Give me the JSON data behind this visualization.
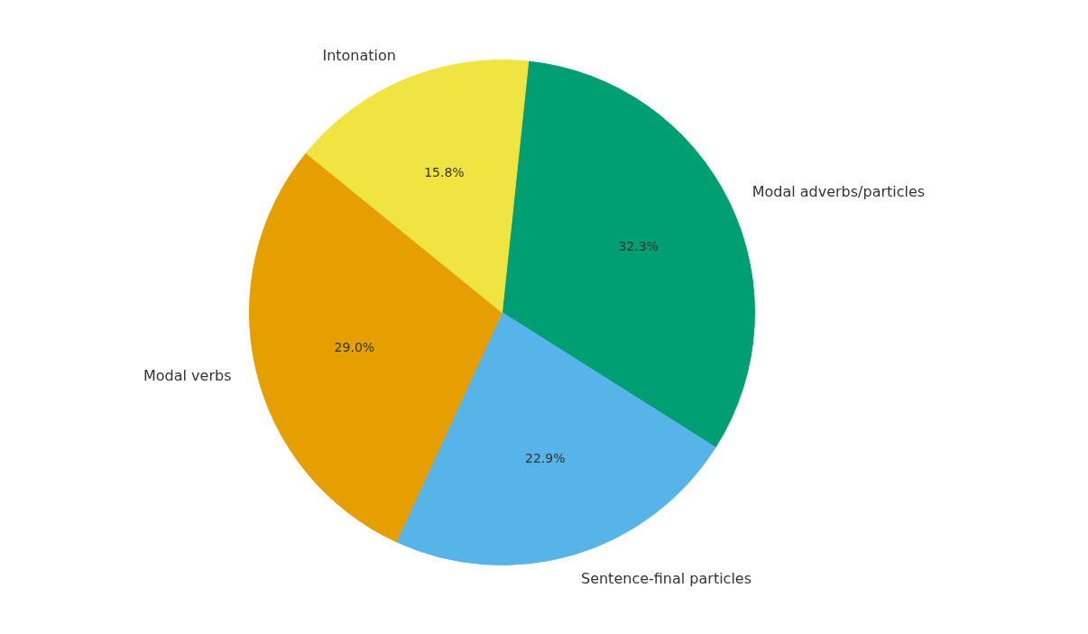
{
  "chart_data": {
    "type": "pie",
    "categories": [
      "Modal adverbs/particles",
      "Sentence-final particles",
      "Modal verbs",
      "Intonation"
    ],
    "values": [
      32.3,
      22.9,
      29.0,
      15.8
    ],
    "colors": [
      "#009e73",
      "#56b4e9",
      "#e69f00",
      "#f0e442"
    ],
    "value_labels": [
      "32.3%",
      "22.9%",
      "29.0%",
      "15.8%"
    ]
  }
}
